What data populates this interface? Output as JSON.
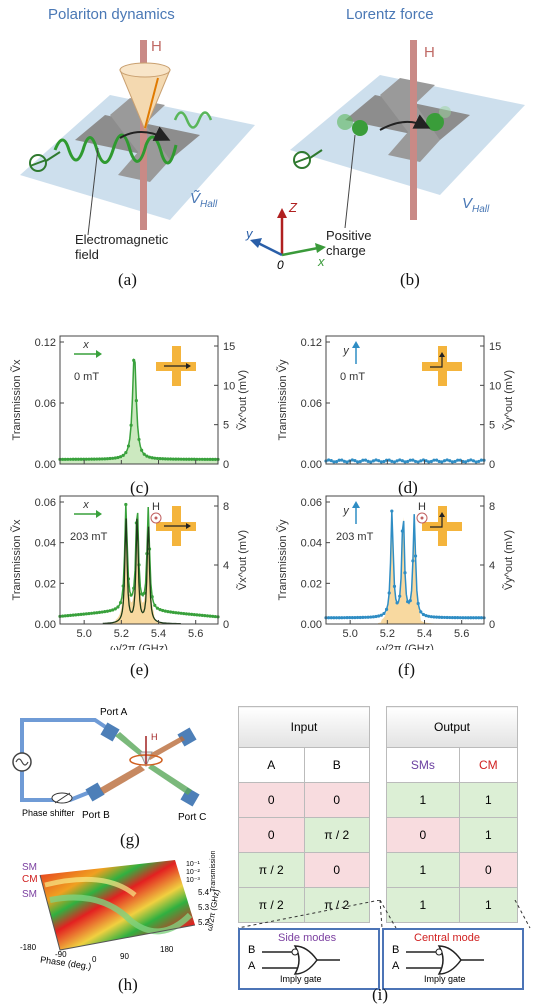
{
  "top": {
    "a": {
      "title": "Polariton dynamics",
      "H": "H",
      "v": "Ṽ",
      "v_sub": "Hall",
      "annotation": "Electromagnetic field",
      "label": "(a)"
    },
    "b": {
      "title": "Lorentz force",
      "H": "H",
      "v": "V",
      "v_sub": "Hall",
      "annotation": "Positive charge",
      "label": "(b)"
    },
    "axes": {
      "z": "Z",
      "y": "y",
      "x": "x",
      "o": "0"
    }
  },
  "colors": {
    "green": "#39a13c",
    "blue": "#2f8dc4",
    "orange": "#f0b040",
    "red": "#a02020",
    "title_blue": "#4a78b5"
  },
  "plots": {
    "c": {
      "label": "(c)",
      "ylabel": "Transmission Ṽx",
      "y2label": "Ṽx^out (mV)",
      "yticks": [
        "0.00",
        "0.06",
        "0.12"
      ],
      "y2ticks": [
        "0",
        "5",
        "10",
        "15"
      ],
      "arrow": "x",
      "field": "0 mT"
    },
    "d": {
      "label": "(d)",
      "ylabel": "Transmission Ṽy",
      "y2label": "Ṽy^out (mV)",
      "yticks": [
        "0.00",
        "0.06",
        "0.12"
      ],
      "y2ticks": [
        "0",
        "5",
        "10",
        "15"
      ],
      "arrow": "y",
      "field": "0 mT"
    },
    "e": {
      "label": "(e)",
      "ylabel": "Transmission Ṽx",
      "y2label": "Ṽx^out (mV)",
      "yticks": [
        "0.00",
        "0.02",
        "0.04",
        "0.06"
      ],
      "y2ticks": [
        "0",
        "4",
        "8"
      ],
      "arrow": "x",
      "field": "203 mT",
      "H": "H"
    },
    "f": {
      "label": "(f)",
      "ylabel": "Transmission Ṽy",
      "y2label": "Ṽy^out (mV)",
      "yticks": [
        "0.00",
        "0.02",
        "0.04",
        "0.06"
      ],
      "y2ticks": [
        "0",
        "4",
        "8"
      ],
      "arrow": "y",
      "field": "203 mT",
      "H": "H"
    },
    "xticks": [
      "5.0",
      "5.2",
      "5.4",
      "5.6"
    ],
    "xlabel": "ω/2π (GHz)"
  },
  "g": {
    "label": "(g)",
    "port_a": "Port A",
    "port_b": "Port B",
    "port_c": "Port C",
    "phase_shifter": "Phase shifter",
    "H": "H"
  },
  "h": {
    "label": "(h)",
    "sm1": "SM",
    "cm": "CM",
    "sm2": "SM",
    "phase_ticks": [
      "-180",
      "-90",
      "0",
      "90",
      "180"
    ],
    "phase_label": "Phase (deg.)",
    "freq_ticks": [
      "5.2",
      "5.3",
      "5.4"
    ],
    "freq_label": "ω/2π (GHz)",
    "trans_ticks": [
      "10⁻¹",
      "10⁻²",
      "10⁻³"
    ],
    "trans_label": "Transmission"
  },
  "i": {
    "label": "(i)",
    "input_header": "Input",
    "output_header": "Output",
    "col_a": "A",
    "col_b": "B",
    "col_sms": "SMs",
    "col_cm": "CM",
    "rows": [
      {
        "a": "0",
        "b": "0",
        "sms": "1",
        "cm": "1"
      },
      {
        "a": "0",
        "b": "π / 2",
        "sms": "0",
        "cm": "1"
      },
      {
        "a": "π / 2",
        "b": "0",
        "sms": "1",
        "cm": "0"
      },
      {
        "a": "π / 2",
        "b": "π / 2",
        "sms": "1",
        "cm": "1"
      }
    ],
    "side": {
      "title": "Side modes",
      "b": "B",
      "a": "A",
      "gate": "Imply gate"
    },
    "central": {
      "title": "Central mode",
      "b": "B",
      "a": "A",
      "gate": "Imply gate"
    }
  }
}
